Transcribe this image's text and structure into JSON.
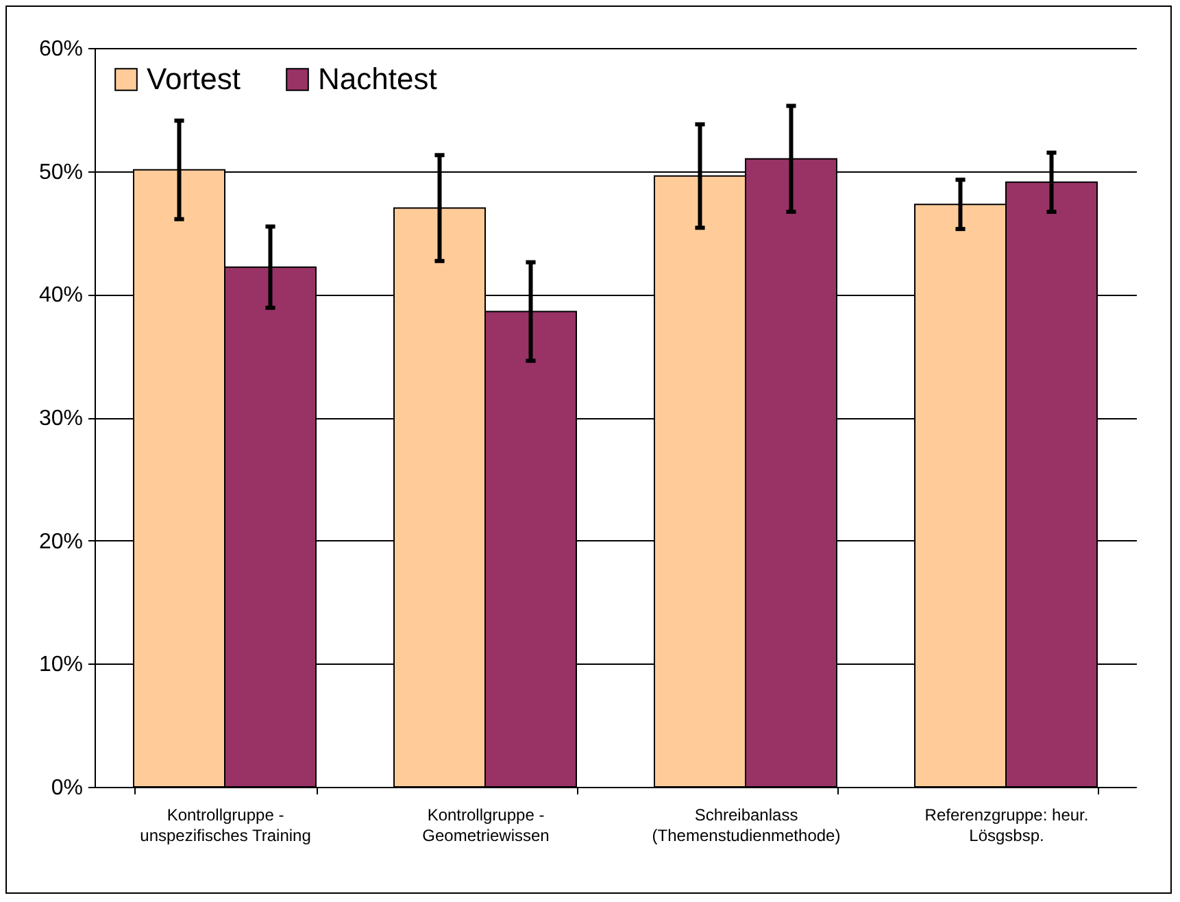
{
  "chart_data": {
    "type": "bar",
    "categories": [
      "Kontrollgruppe - unspezifisches Training",
      "Kontrollgruppe - Geometriewissen",
      "Schreibanlass (Themenstudienmethode)",
      "Referenzgruppe: heur. Lösgsbsp."
    ],
    "series": [
      {
        "name": "Vortest",
        "color": "#ffcc99",
        "values": [
          50.1,
          47.0,
          49.6,
          47.3
        ],
        "errors": [
          4.0,
          4.3,
          4.2,
          2.0
        ]
      },
      {
        "name": "Nachtest",
        "color": "#993366",
        "values": [
          42.2,
          38.6,
          51.0,
          49.1
        ],
        "errors": [
          3.3,
          4.0,
          4.3,
          2.4
        ]
      }
    ],
    "ylim": [
      0,
      60
    ],
    "yticks": [
      {
        "value": 0,
        "label": "0%"
      },
      {
        "value": 10,
        "label": "10%"
      },
      {
        "value": 20,
        "label": "20%"
      },
      {
        "value": 30,
        "label": "30%"
      },
      {
        "value": 40,
        "label": "40%"
      },
      {
        "value": 50,
        "label": "50%"
      },
      {
        "value": 60,
        "label": "60%"
      }
    ],
    "grid": "y",
    "legend": "top left"
  }
}
